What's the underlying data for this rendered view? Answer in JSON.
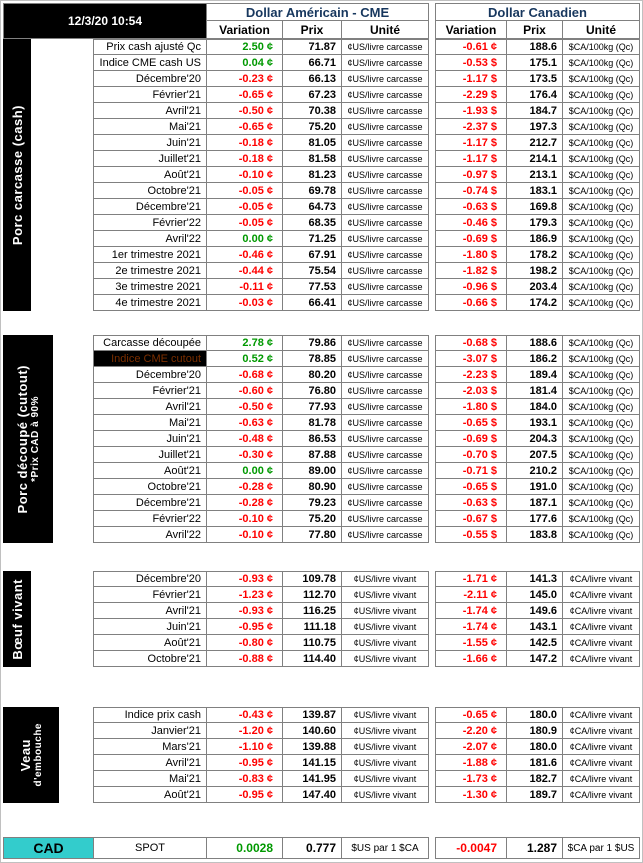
{
  "header": {
    "timestamp": "12/3/20 10:54",
    "usd_title": "Dollar Américain - CME",
    "cad_title": "Dollar Canadien",
    "col_variation": "Variation",
    "col_prix": "Prix",
    "col_unite": "Unité"
  },
  "colors": {
    "positive": "#009900",
    "negative": "#FF0000",
    "grid": "#808080",
    "header_text": "#17375E",
    "section_label_bg": "#000000",
    "section_label_text": "#FFFFFF",
    "cad_bg": "#33CCCC",
    "blackout_text": "#7B2E00"
  },
  "sections": [
    {
      "id": "porc-carcasse-cash",
      "label_lines": [
        "Porc carcasse (cash)"
      ],
      "us_unit": "¢US/livre carcasse",
      "cad_unit": "$CA/100kg (Qc)",
      "rows": [
        {
          "label": "Prix cash ajusté Qc",
          "us_var": "2.50 ¢",
          "us_prix": "71.87",
          "cad_var": "-0.61 ¢",
          "cad_prix": "188.6"
        },
        {
          "label": "Indice CME cash US",
          "us_var": "0.04 ¢",
          "us_prix": "66.71",
          "cad_var": "-0.53 $",
          "cad_prix": "175.1"
        },
        {
          "label": "Décembre'20",
          "us_var": "-0.23 ¢",
          "us_prix": "66.13",
          "cad_var": "-1.17 $",
          "cad_prix": "173.5"
        },
        {
          "label": "Février'21",
          "us_var": "-0.65 ¢",
          "us_prix": "67.23",
          "cad_var": "-2.29 $",
          "cad_prix": "176.4"
        },
        {
          "label": "Avril'21",
          "us_var": "-0.50 ¢",
          "us_prix": "70.38",
          "cad_var": "-1.93 $",
          "cad_prix": "184.7"
        },
        {
          "label": "Mai'21",
          "us_var": "-0.65 ¢",
          "us_prix": "75.20",
          "cad_var": "-2.37 $",
          "cad_prix": "197.3"
        },
        {
          "label": "Juin'21",
          "us_var": "-0.18 ¢",
          "us_prix": "81.05",
          "cad_var": "-1.17 $",
          "cad_prix": "212.7"
        },
        {
          "label": "Juillet'21",
          "us_var": "-0.18 ¢",
          "us_prix": "81.58",
          "cad_var": "-1.17 $",
          "cad_prix": "214.1"
        },
        {
          "label": "Août'21",
          "us_var": "-0.10 ¢",
          "us_prix": "81.23",
          "cad_var": "-0.97 $",
          "cad_prix": "213.1"
        },
        {
          "label": "Octobre'21",
          "us_var": "-0.05 ¢",
          "us_prix": "69.78",
          "cad_var": "-0.74 $",
          "cad_prix": "183.1"
        },
        {
          "label": "Décembre'21",
          "us_var": "-0.05 ¢",
          "us_prix": "64.73",
          "cad_var": "-0.63 $",
          "cad_prix": "169.8"
        },
        {
          "label": "Février'22",
          "us_var": "-0.05 ¢",
          "us_prix": "68.35",
          "cad_var": "-0.46 $",
          "cad_prix": "179.3"
        },
        {
          "label": "Avril'22",
          "us_var": "0.00 ¢",
          "us_prix": "71.25",
          "cad_var": "-0.69 $",
          "cad_prix": "186.9"
        },
        {
          "label": "1er trimestre 2021",
          "us_var": "-0.46 ¢",
          "us_prix": "67.91",
          "cad_var": "-1.80 $",
          "cad_prix": "178.2"
        },
        {
          "label": "2e trimestre 2021",
          "us_var": "-0.44 ¢",
          "us_prix": "75.54",
          "cad_var": "-1.82 $",
          "cad_prix": "198.2"
        },
        {
          "label": "3e trimestre 2021",
          "us_var": "-0.11 ¢",
          "us_prix": "77.53",
          "cad_var": "-0.96 $",
          "cad_prix": "203.4"
        },
        {
          "label": "4e trimestre 2021",
          "us_var": "-0.03 ¢",
          "us_prix": "66.41",
          "cad_var": "-0.66 $",
          "cad_prix": "174.2"
        }
      ]
    },
    {
      "id": "porc-decoupe-cutout",
      "label_lines": [
        "Porc découpé (cutout)",
        "*Prix CAD à 90%"
      ],
      "us_unit": "¢US/livre carcasse",
      "cad_unit": "$CA/100kg (Qc)",
      "rows": [
        {
          "label": "Carcasse découpée",
          "us_var": "2.78 ¢",
          "us_prix": "79.86",
          "cad_var": "-0.68 $",
          "cad_prix": "188.6"
        },
        {
          "label": "Indice CME cutout",
          "blackout": true,
          "us_var": "0.52 ¢",
          "us_prix": "78.85",
          "cad_var": "-3.07 $",
          "cad_prix": "186.2"
        },
        {
          "label": "Décembre'20",
          "us_var": "-0.68 ¢",
          "us_prix": "80.20",
          "cad_var": "-2.23 $",
          "cad_prix": "189.4"
        },
        {
          "label": "Février'21",
          "us_var": "-0.60 ¢",
          "us_prix": "76.80",
          "cad_var": "-2.03 $",
          "cad_prix": "181.4"
        },
        {
          "label": "Avril'21",
          "us_var": "-0.50 ¢",
          "us_prix": "77.93",
          "cad_var": "-1.80 $",
          "cad_prix": "184.0"
        },
        {
          "label": "Mai'21",
          "us_var": "-0.63 ¢",
          "us_prix": "81.78",
          "cad_var": "-0.65 $",
          "cad_prix": "193.1"
        },
        {
          "label": "Juin'21",
          "us_var": "-0.48 ¢",
          "us_prix": "86.53",
          "cad_var": "-0.69 $",
          "cad_prix": "204.3"
        },
        {
          "label": "Juillet'21",
          "us_var": "-0.30 ¢",
          "us_prix": "87.88",
          "cad_var": "-0.70 $",
          "cad_prix": "207.5"
        },
        {
          "label": "Août'21",
          "us_var": "0.00 ¢",
          "us_prix": "89.00",
          "cad_var": "-0.71 $",
          "cad_prix": "210.2"
        },
        {
          "label": "Octobre'21",
          "us_var": "-0.28 ¢",
          "us_prix": "80.90",
          "cad_var": "-0.65 $",
          "cad_prix": "191.0"
        },
        {
          "label": "Décembre'21",
          "us_var": "-0.28 ¢",
          "us_prix": "79.23",
          "cad_var": "-0.63 $",
          "cad_prix": "187.1"
        },
        {
          "label": "Février'22",
          "us_var": "-0.10 ¢",
          "us_prix": "75.20",
          "cad_var": "-0.67 $",
          "cad_prix": "177.6"
        },
        {
          "label": "Avril'22",
          "us_var": "-0.10 ¢",
          "us_prix": "77.80",
          "cad_var": "-0.55 $",
          "cad_prix": "183.8"
        }
      ]
    },
    {
      "id": "boeuf-vivant",
      "label_lines": [
        "Bœuf vivant"
      ],
      "us_unit": "¢US/livre vivant",
      "cad_unit": "¢CA/livre vivant",
      "rows": [
        {
          "label": "Décembre'20",
          "us_var": "-0.93 ¢",
          "us_prix": "109.78",
          "cad_var": "-1.71 ¢",
          "cad_prix": "141.3"
        },
        {
          "label": "Février'21",
          "us_var": "-1.23 ¢",
          "us_prix": "112.70",
          "cad_var": "-2.11 ¢",
          "cad_prix": "145.0"
        },
        {
          "label": "Avril'21",
          "us_var": "-0.93 ¢",
          "us_prix": "116.25",
          "cad_var": "-1.74 ¢",
          "cad_prix": "149.6"
        },
        {
          "label": "Juin'21",
          "us_var": "-0.95 ¢",
          "us_prix": "111.18",
          "cad_var": "-1.74 ¢",
          "cad_prix": "143.1"
        },
        {
          "label": "Août'21",
          "us_var": "-0.80 ¢",
          "us_prix": "110.75",
          "cad_var": "-1.55 ¢",
          "cad_prix": "142.5"
        },
        {
          "label": "Octobre'21",
          "us_var": "-0.88 ¢",
          "us_prix": "114.40",
          "cad_var": "-1.66 ¢",
          "cad_prix": "147.2"
        }
      ]
    },
    {
      "id": "veau-embouche",
      "label_lines": [
        "Veau",
        "d'embouche"
      ],
      "us_unit": "¢US/livre vivant",
      "cad_unit": "¢CA/livre vivant",
      "rows": [
        {
          "label": "Indice prix cash",
          "us_var": "-0.43 ¢",
          "us_prix": "139.87",
          "cad_var": "-0.65 ¢",
          "cad_prix": "180.0"
        },
        {
          "label": "Janvier'21",
          "us_var": "-1.20 ¢",
          "us_prix": "140.60",
          "cad_var": "-2.20 ¢",
          "cad_prix": "180.9"
        },
        {
          "label": "Mars'21",
          "us_var": "-1.10 ¢",
          "us_prix": "139.88",
          "cad_var": "-2.07 ¢",
          "cad_prix": "180.0"
        },
        {
          "label": "Avril'21",
          "us_var": "-0.95 ¢",
          "us_prix": "141.15",
          "cad_var": "-1.88 ¢",
          "cad_prix": "181.6"
        },
        {
          "label": "Mai'21",
          "us_var": "-0.83 ¢",
          "us_prix": "141.95",
          "cad_var": "-1.73 ¢",
          "cad_prix": "182.7"
        },
        {
          "label": "Août'21",
          "us_var": "-0.95 ¢",
          "us_prix": "147.40",
          "cad_var": "-1.30 ¢",
          "cad_prix": "189.7"
        }
      ]
    }
  ],
  "cad": {
    "label": "CAD",
    "row_label": "SPOT",
    "us_var": "0.0028",
    "us_prix": "0.777",
    "us_unit": "$US par 1 $CA",
    "cad_var": "-0.0047",
    "cad_prix": "1.287",
    "cad_unit": "$CA par 1 $US"
  }
}
